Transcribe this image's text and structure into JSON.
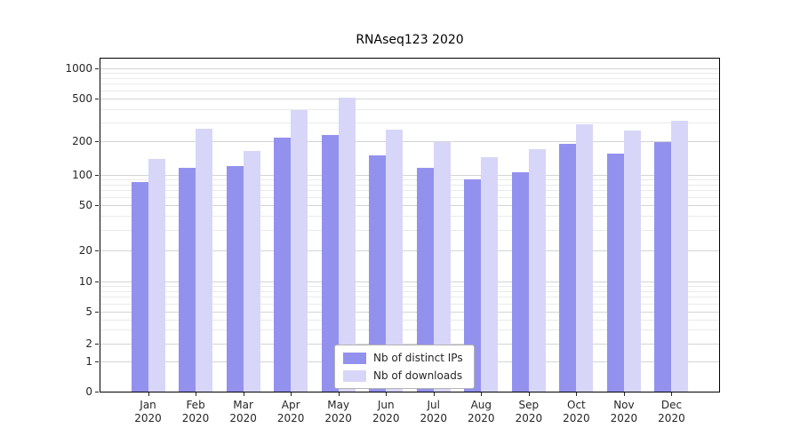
{
  "chart_data": {
    "type": "bar",
    "title": "RNAseq123 2020",
    "categories": [
      "Jan",
      "Feb",
      "Mar",
      "Apr",
      "May",
      "Jun",
      "Jul",
      "Aug",
      "Sep",
      "Oct",
      "Nov",
      "Dec"
    ],
    "x_year_label": "2020",
    "series": [
      {
        "name": "Nb of distinct IPs",
        "color": "#9391ee",
        "values": [
          85,
          115,
          120,
          215,
          230,
          150,
          115,
          90,
          105,
          190,
          155,
          195
        ]
      },
      {
        "name": "Nb of downloads",
        "color": "#d7d6f8",
        "values": [
          140,
          260,
          165,
          390,
          510,
          255,
          195,
          145,
          170,
          290,
          250,
          310
        ]
      }
    ],
    "yscale": "symlog",
    "y_ticks": [
      0,
      1,
      2,
      5,
      10,
      20,
      50,
      100,
      200,
      500,
      1000
    ],
    "y_minor_ticks": [
      3,
      4,
      6,
      7,
      8,
      9,
      30,
      40,
      60,
      70,
      80,
      90,
      300,
      400,
      600,
      700,
      800,
      900
    ],
    "ylim": [
      0,
      1200
    ],
    "grid": true,
    "legend_position": "lower center",
    "colors": {
      "grid_major": "#d4d4d4",
      "grid_minor": "#eaeaea",
      "spine": "#000000",
      "text": "#262626"
    }
  }
}
